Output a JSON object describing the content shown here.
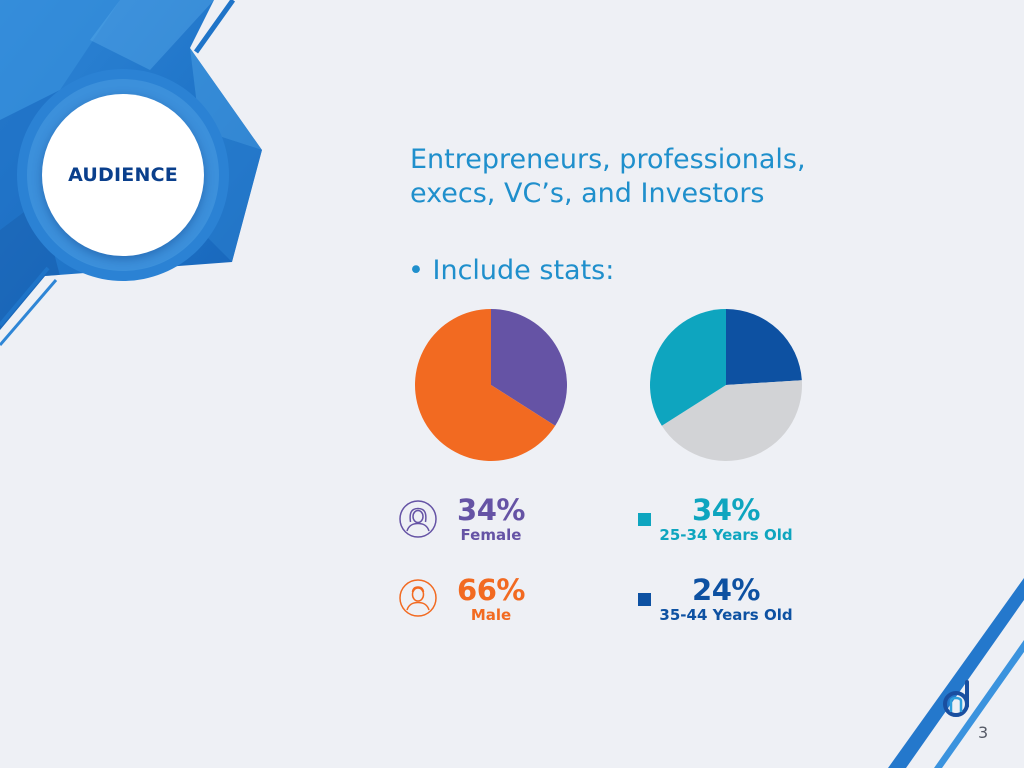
{
  "badge": {
    "title": "AUDIENCE"
  },
  "headline": {
    "line1": "Entrepreneurs, professionals,",
    "line2": "execs, VC’s, and Investors"
  },
  "bullet": "• Include stats:",
  "colors": {
    "female": "#6553a5",
    "male": "#f26a21",
    "age_25_34": "#0ea5bf",
    "age_35_44": "#0d51a2",
    "other": "#d2d3d6",
    "headline": "#1f8fcc",
    "badge_text": "#0a3f8c"
  },
  "chart_data": [
    {
      "type": "pie",
      "categories": [
        "Female",
        "Male"
      ],
      "values": [
        34,
        66
      ]
    },
    {
      "type": "pie",
      "categories": [
        "35-44 Years Old",
        "",
        "25-34 Years Old"
      ],
      "values": [
        24,
        42,
        34
      ]
    }
  ],
  "stats": {
    "female": {
      "pct": "34%",
      "label": "Female",
      "icon": "female-user-icon"
    },
    "male": {
      "pct": "66%",
      "label": "Male",
      "icon": "male-user-icon"
    },
    "age_25_34": {
      "pct": "34%",
      "label": "25-34 Years Old"
    },
    "age_35_44": {
      "pct": "24%",
      "label": "35-44 Years Old"
    }
  },
  "footer": {
    "page_number": "3",
    "logo": "nd-logo"
  }
}
